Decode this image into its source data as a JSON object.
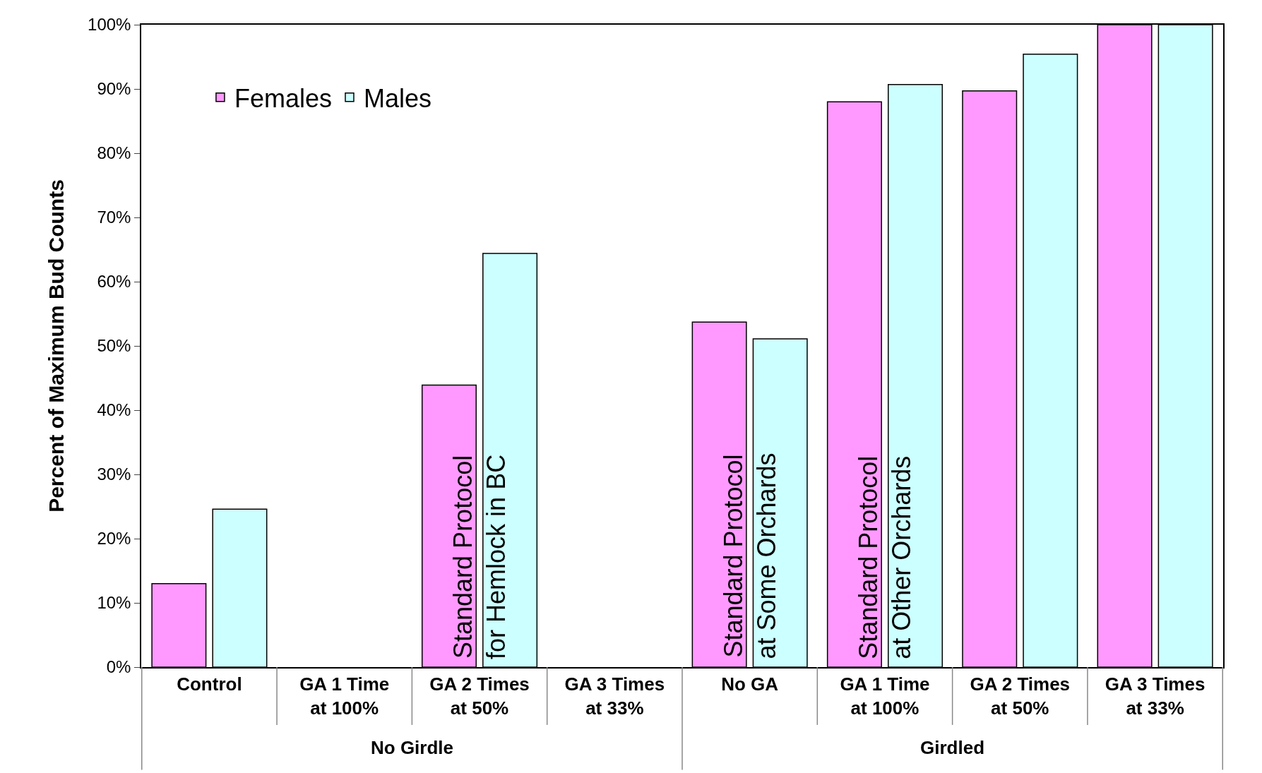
{
  "chart_data": {
    "type": "bar",
    "ylabel": "Percent of Maximum Bud Counts",
    "categories": [
      "Control",
      "GA 1 Time\nat 100%",
      "GA 2 Times\nat 50%",
      "GA 3 Times\nat 33%",
      "No GA",
      "GA 1 Time\nat 100%",
      "GA 2 Times\nat 50%",
      "GA 3 Times\nat 33%"
    ],
    "series": [
      {
        "name": "Females",
        "color": "#ff99ff",
        "values": [
          13.0,
          null,
          43.9,
          null,
          53.7,
          88.0,
          89.7,
          100
        ]
      },
      {
        "name": "Males",
        "color": "#ccffff",
        "values": [
          24.6,
          null,
          64.4,
          null,
          51.1,
          90.7,
          95.4,
          100
        ]
      }
    ],
    "ylim": [
      0,
      100
    ],
    "yticks": [
      {
        "value": 0,
        "label": "0%"
      },
      {
        "value": 10,
        "label": "10%"
      },
      {
        "value": 20,
        "label": "20%"
      },
      {
        "value": 30,
        "label": "30%"
      },
      {
        "value": 40,
        "label": "40%"
      },
      {
        "value": 50,
        "label": "50%"
      },
      {
        "value": 60,
        "label": "60%"
      },
      {
        "value": 70,
        "label": "70%"
      },
      {
        "value": 80,
        "label": "80%"
      },
      {
        "value": 90,
        "label": "90%"
      },
      {
        "value": 100,
        "label": "100%"
      }
    ],
    "annotations": [
      "No Girdle",
      "Girdled",
      "Standard Protocol\nfor Hemlock in BC",
      "Standard Protocol\nat Some Orchards",
      "Standard Protocol\nat Other Orchards"
    ],
    "legend": "top left"
  }
}
